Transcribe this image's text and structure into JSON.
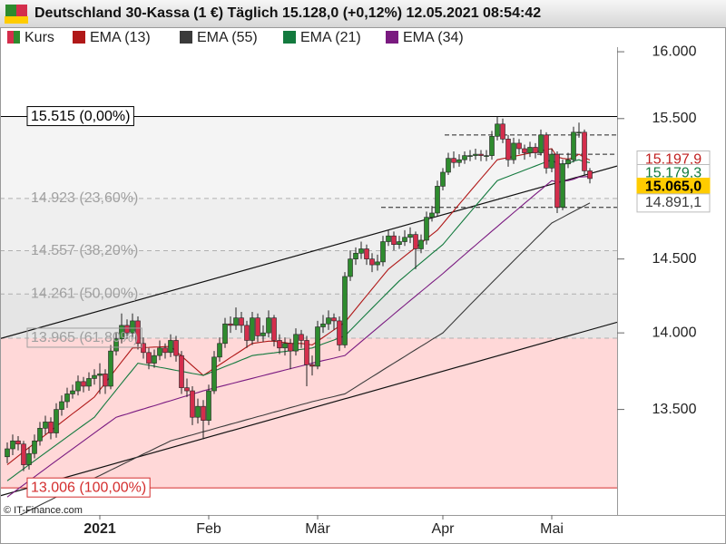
{
  "chart_data": {
    "type": "candlestick",
    "title": "Deutschland 30-Kassa (1 €) Täglich 15.128,0 (+0,12%) 12.05.2021 08:54:42",
    "source": "© IT-Finance.com",
    "log_scale": true,
    "ylim": [
      12840,
      16035
    ],
    "yticks": [
      {
        "value": 16000,
        "label": "16.000"
      },
      {
        "value": 15500,
        "label": "15.500"
      },
      {
        "value": 14500,
        "label": "14.500"
      },
      {
        "value": 14000,
        "label": "14.000"
      },
      {
        "value": 13500,
        "label": "13.500"
      }
    ],
    "categories": [
      null,
      null,
      null,
      null,
      null,
      null,
      null,
      null,
      null,
      null,
      null,
      null,
      null,
      null,
      null,
      null,
      null,
      "2021",
      null,
      null,
      null,
      null,
      null,
      null,
      null,
      null,
      null,
      null,
      null,
      null,
      null,
      null,
      null,
      null,
      null,
      null,
      null,
      "Feb",
      null,
      null,
      null,
      null,
      null,
      null,
      null,
      null,
      null,
      null,
      null,
      null,
      null,
      null,
      null,
      null,
      null,
      null,
      null,
      "Mär",
      null,
      null,
      null,
      null,
      null,
      null,
      null,
      null,
      null,
      null,
      null,
      null,
      null,
      null,
      null,
      null,
      null,
      null,
      null,
      null,
      null,
      null,
      "Apr",
      null,
      null,
      null,
      null,
      null,
      null,
      null,
      null,
      null,
      null,
      null,
      null,
      null,
      null,
      null,
      null,
      null,
      null,
      null,
      "Mai",
      null,
      null,
      null,
      null,
      null,
      null,
      null
    ],
    "candles": {
      "name": "Kurs",
      "up_color": "#2e8b2e",
      "down_color": "#d42e4c",
      "open": [
        13200,
        13250,
        13300,
        13280,
        13150,
        13220,
        13300,
        13380,
        13420,
        13350,
        13500,
        13550,
        13600,
        13620,
        13680,
        13650,
        13700,
        13720,
        13730,
        13650,
        13880,
        13960,
        14050,
        14000,
        14080,
        13930,
        13870,
        13800,
        13850,
        13900,
        13870,
        13950,
        13850,
        13640,
        13620,
        13450,
        13520,
        13430,
        13620,
        13840,
        13930,
        14060,
        14050,
        14100,
        14050,
        13950,
        14100,
        13980,
        14000,
        14100,
        13950,
        13900,
        13930,
        13880,
        13990,
        13950,
        13790,
        13780,
        14040,
        14060,
        14100,
        14080,
        13920,
        14380,
        14500,
        14540,
        14570,
        14500,
        14460,
        14480,
        14620,
        14660,
        14600,
        14620,
        14650,
        14670,
        14570,
        14630,
        14790,
        14820,
        15010,
        15110,
        15210,
        15180,
        15200,
        15230,
        15230,
        15240,
        15230,
        15230,
        15370,
        15460,
        15350,
        15200,
        15320,
        15280,
        15250,
        15290,
        15250,
        15380,
        15140,
        15240,
        14860,
        15170,
        15200,
        15400,
        15400,
        15120
      ],
      "high": [
        13290,
        13340,
        13330,
        13300,
        13260,
        13340,
        13420,
        13460,
        13450,
        13540,
        13590,
        13640,
        13660,
        13720,
        13710,
        13740,
        13760,
        13800,
        13760,
        13920,
        14000,
        14130,
        14090,
        14130,
        14110,
        13970,
        13900,
        13890,
        13950,
        13930,
        13990,
        13980,
        13880,
        13700,
        13650,
        13570,
        13560,
        13660,
        13880,
        13970,
        14100,
        14110,
        14170,
        14140,
        14080,
        14140,
        14130,
        14050,
        14150,
        14120,
        13990,
        13970,
        13960,
        14030,
        14020,
        13980,
        13850,
        14080,
        14120,
        14150,
        14130,
        14110,
        14410,
        14560,
        14580,
        14620,
        14600,
        14540,
        14530,
        14660,
        14700,
        14690,
        14660,
        14700,
        14720,
        14690,
        14670,
        14830,
        14870,
        15050,
        15140,
        15250,
        15260,
        15240,
        15260,
        15270,
        15280,
        15270,
        15270,
        15410,
        15515,
        15500,
        15380,
        15360,
        15350,
        15310,
        15330,
        15320,
        15420,
        15400,
        15280,
        15260,
        15200,
        15250,
        15440,
        15470,
        15420,
        15140
      ],
      "low": [
        13160,
        13210,
        13240,
        13110,
        13120,
        13190,
        13270,
        13340,
        13310,
        13320,
        13460,
        13510,
        13570,
        13590,
        13610,
        13620,
        13660,
        13600,
        13600,
        13630,
        13850,
        13930,
        13960,
        13970,
        13890,
        13830,
        13760,
        13770,
        13820,
        13830,
        13840,
        13810,
        13600,
        13580,
        13400,
        13410,
        13310,
        13400,
        13600,
        13810,
        13900,
        14000,
        14020,
        14000,
        13900,
        13920,
        13940,
        13940,
        13970,
        13910,
        13860,
        13850,
        13760,
        13850,
        13900,
        13650,
        13720,
        13760,
        14000,
        14020,
        14020,
        13880,
        13900,
        14350,
        14460,
        14500,
        14460,
        14410,
        14420,
        14450,
        14590,
        14560,
        14570,
        14590,
        14610,
        14430,
        14540,
        14600,
        14760,
        14800,
        14980,
        15090,
        15140,
        15150,
        15170,
        15190,
        15200,
        15190,
        15190,
        15200,
        15340,
        15320,
        15150,
        15170,
        15240,
        15200,
        15220,
        15210,
        15230,
        15100,
        15110,
        14820,
        14840,
        15140,
        15180,
        15360,
        15090,
        15030
      ],
      "close": [
        13250,
        13300,
        13280,
        13150,
        13220,
        13300,
        13380,
        13420,
        13350,
        13500,
        13550,
        13600,
        13620,
        13680,
        13650,
        13700,
        13720,
        13730,
        13650,
        13880,
        13960,
        14050,
        14000,
        14080,
        13930,
        13870,
        13800,
        13850,
        13900,
        13870,
        13950,
        13850,
        13640,
        13620,
        13450,
        13520,
        13430,
        13620,
        13840,
        13930,
        14060,
        14050,
        14100,
        14050,
        13950,
        14100,
        13980,
        14000,
        14100,
        13950,
        13900,
        13930,
        13880,
        13990,
        13950,
        13790,
        13780,
        14040,
        14060,
        14100,
        14080,
        13920,
        14380,
        14500,
        14540,
        14570,
        14500,
        14460,
        14480,
        14620,
        14660,
        14600,
        14620,
        14650,
        14670,
        14570,
        14630,
        14790,
        14820,
        15010,
        15110,
        15210,
        15180,
        15200,
        15230,
        15230,
        15240,
        15230,
        15230,
        15370,
        15460,
        15350,
        15200,
        15320,
        15280,
        15250,
        15290,
        15250,
        15380,
        15140,
        15240,
        14860,
        15170,
        15200,
        15400,
        15400,
        15120,
        15065
      ]
    },
    "series": [
      {
        "name": "EMA (13)",
        "color": "#b01818",
        "values": [
          13150,
          13177,
          13204,
          13231,
          13258,
          13284,
          13311,
          13338,
          13365,
          13392,
          13419,
          13446,
          13473,
          13499,
          13526,
          13553,
          13580,
          13626,
          13671,
          13717,
          13763,
          13809,
          13854,
          13900,
          13901,
          13903,
          13904,
          13906,
          13907,
          13909,
          13910,
          13878,
          13847,
          13815,
          13783,
          13752,
          13720,
          13743,
          13767,
          13790,
          13813,
          13837,
          13860,
          13883,
          13907,
          13930,
          13935,
          13940,
          13945,
          13945,
          13940,
          13935,
          13930,
          13930,
          13930,
          13925,
          13920,
          13945,
          13970,
          13995,
          14020,
          14045,
          14070,
          14115,
          14160,
          14205,
          14250,
          14295,
          14340,
          14385,
          14430,
          14460,
          14490,
          14520,
          14550,
          14580,
          14610,
          14640,
          14670,
          14700,
          14745,
          14791,
          14836,
          14882,
          14927,
          14973,
          15018,
          15064,
          15109,
          15155,
          15200,
          15208,
          15216,
          15224,
          15232,
          15240,
          15248,
          15256,
          15264,
          15272,
          15280,
          15220,
          15210,
          15205,
          15215,
          15240,
          15215,
          15197.9
        ]
      },
      {
        "name": "EMA (55)",
        "color": "#3a3a3a",
        "values": [
          12800,
          12817,
          12833,
          12850,
          12867,
          12883,
          12900,
          12917,
          12933,
          12950,
          12967,
          12983,
          13000,
          13017,
          13033,
          13050,
          13067,
          13083,
          13100,
          13117,
          13133,
          13150,
          13167,
          13183,
          13200,
          13217,
          13233,
          13250,
          13267,
          13283,
          13300,
          13310,
          13319,
          13329,
          13338,
          13348,
          13358,
          13367,
          13377,
          13387,
          13396,
          13406,
          13415,
          13425,
          13435,
          13444,
          13454,
          13463,
          13473,
          13483,
          13492,
          13502,
          13512,
          13521,
          13531,
          13540,
          13550,
          13558,
          13567,
          13575,
          13583,
          13592,
          13600,
          13622,
          13644,
          13667,
          13689,
          13711,
          13733,
          13756,
          13778,
          13800,
          13822,
          13844,
          13867,
          13889,
          13911,
          13933,
          13956,
          13978,
          14000,
          14038,
          14075,
          14113,
          14150,
          14188,
          14225,
          14263,
          14300,
          14338,
          14375,
          14413,
          14450,
          14488,
          14525,
          14563,
          14600,
          14638,
          14675,
          14713,
          14750,
          14770,
          14790,
          14811,
          14831,
          14851,
          14871,
          14891.1
        ]
      },
      {
        "name": "EMA (21)",
        "color": "#137a3e",
        "values": [
          13050,
          13075,
          13100,
          13125,
          13150,
          13175,
          13200,
          13225,
          13250,
          13275,
          13300,
          13325,
          13350,
          13375,
          13400,
          13425,
          13450,
          13494,
          13538,
          13581,
          13625,
          13669,
          13713,
          13756,
          13800,
          13793,
          13787,
          13780,
          13773,
          13767,
          13760,
          13753,
          13747,
          13740,
          13733,
          13727,
          13720,
          13734,
          13749,
          13763,
          13778,
          13792,
          13806,
          13821,
          13835,
          13850,
          13855,
          13859,
          13864,
          13868,
          13873,
          13877,
          13882,
          13886,
          13891,
          13895,
          13900,
          13913,
          13927,
          13940,
          13953,
          13967,
          13980,
          14017,
          14054,
          14091,
          14128,
          14165,
          14202,
          14239,
          14276,
          14313,
          14350,
          14381,
          14413,
          14444,
          14475,
          14506,
          14538,
          14569,
          14600,
          14645,
          14690,
          14735,
          14780,
          14825,
          14870,
          14915,
          14960,
          15005,
          15050,
          15065,
          15080,
          15095,
          15110,
          15125,
          15140,
          15155,
          15170,
          15185,
          15200,
          15170,
          15170,
          15172,
          15190,
          15200,
          15185,
          15179.3
        ]
      },
      {
        "name": "EMA (34)",
        "color": "#7a1a80",
        "values": [
          12950,
          12975,
          13000,
          13025,
          13050,
          13075,
          13100,
          13125,
          13150,
          13175,
          13200,
          13225,
          13250,
          13275,
          13300,
          13325,
          13350,
          13375,
          13400,
          13425,
          13450,
          13461,
          13471,
          13482,
          13493,
          13503,
          13514,
          13524,
          13535,
          13546,
          13556,
          13567,
          13578,
          13588,
          13599,
          13609,
          13620,
          13629,
          13638,
          13647,
          13656,
          13665,
          13674,
          13683,
          13692,
          13701,
          13710,
          13719,
          13728,
          13737,
          13746,
          13755,
          13764,
          13773,
          13782,
          13791,
          13800,
          13808,
          13817,
          13825,
          13833,
          13842,
          13850,
          13881,
          13911,
          13942,
          13972,
          14003,
          14033,
          14064,
          14094,
          14125,
          14156,
          14186,
          14217,
          14247,
          14278,
          14308,
          14339,
          14369,
          14400,
          14433,
          14465,
          14498,
          14530,
          14563,
          14595,
          14628,
          14660,
          14693,
          14725,
          14758,
          14790,
          14823,
          14855,
          14888,
          14920,
          14953,
          14985,
          15018,
          15050,
          15040,
          15045,
          15050,
          15060,
          15075,
          15078,
          15080
        ]
      }
    ],
    "fib_levels": [
      {
        "value": 15515,
        "label": "15.515 (0,00%)",
        "color": "#000000",
        "band": "#ffffff"
      },
      {
        "value": 14923,
        "label": "14.923 (23,60%)",
        "color": "#a0a0a0",
        "band": "#f4f4f4"
      },
      {
        "value": 14557,
        "label": "14.557 (38,20%)",
        "color": "#a0a0a0",
        "band": "#efefef"
      },
      {
        "value": 14261,
        "label": "14.261 (50,00%)",
        "color": "#a0a0a0",
        "band": "#eaeaea"
      },
      {
        "value": 13965,
        "label": "13.965 (61,80%)",
        "color": "#a0a0a0",
        "band": "#e5e5e5"
      },
      {
        "value": 13006,
        "label": "13.006 (100,00%)",
        "color": "#d42e2e",
        "band": "#ffd8d8"
      }
    ],
    "trendlines": [
      {
        "values": [
          13975,
          15100
        ]
      },
      {
        "values": [
          12970,
          14020
        ]
      }
    ],
    "dashed_levels": [
      15380,
      15240,
      14860
    ],
    "price_labels": [
      {
        "value": 15197.9,
        "label": "15.197,9",
        "color": "#c02020",
        "fill": "#ffffff"
      },
      {
        "value": 15179.3,
        "label": "15.179,3",
        "color": "#137a3e",
        "fill": "#ffffff"
      },
      {
        "value": 15065,
        "label": "15.065,0",
        "color": "#000000",
        "fill": "#ffcc00"
      },
      {
        "value": 14891.1,
        "label": "14.891,1",
        "color": "#3a3a3a",
        "fill": "#ffffff"
      }
    ]
  }
}
